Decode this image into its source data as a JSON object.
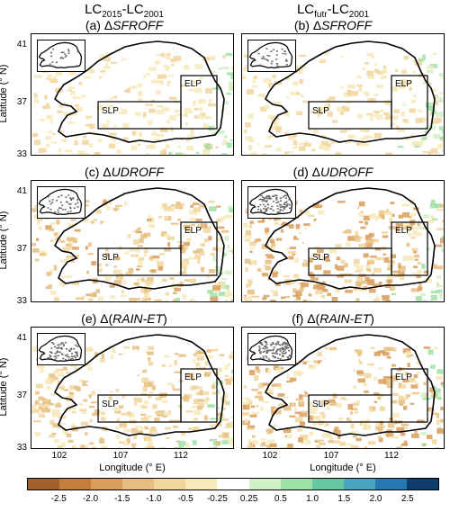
{
  "columns": [
    {
      "main": "LC",
      "sub1": "2015",
      "dash": "-LC",
      "sub2": "2001"
    },
    {
      "main": "LC",
      "sub1": "futr",
      "dash": "-LC",
      "sub2": "2001"
    }
  ],
  "panels": [
    {
      "label": "(a) Δ",
      "var": "SFROFF"
    },
    {
      "label": "(b) Δ",
      "var": "SFROFF"
    },
    {
      "label": "(c) Δ",
      "var": "UDROFF"
    },
    {
      "label": "(d) Δ",
      "var": "UDROFF"
    },
    {
      "label": "(e) Δ(",
      "var": "RAIN-ET",
      "close": ")"
    },
    {
      "label": "(f) Δ(",
      "var": "RAIN-ET",
      "close": ")"
    }
  ],
  "regions": {
    "slp": "SLP",
    "elp": "ELP"
  },
  "y_axis": {
    "label": "Latitude (° N)",
    "ticks": [
      "41",
      "37",
      "33"
    ]
  },
  "x_axis": {
    "label": "Longitude (° E)",
    "ticks": [
      "102",
      "107",
      "112"
    ]
  },
  "colorbar": {
    "colors": [
      "#a0622a",
      "#c47f3e",
      "#d99d5c",
      "#e8be80",
      "#f1d59c",
      "#f7e9bb",
      "#ffffff",
      "#d2f0c6",
      "#9fe0a6",
      "#67c7a3",
      "#4ba4c0",
      "#2878b0",
      "#0f3c6b"
    ],
    "ticks": [
      "-2.5",
      "-2.0",
      "-1.5",
      "-1.0",
      "-0.5",
      "-0.25",
      "0.25",
      "0.5",
      "1.0",
      "1.5",
      "2.0",
      "2.5"
    ]
  }
}
